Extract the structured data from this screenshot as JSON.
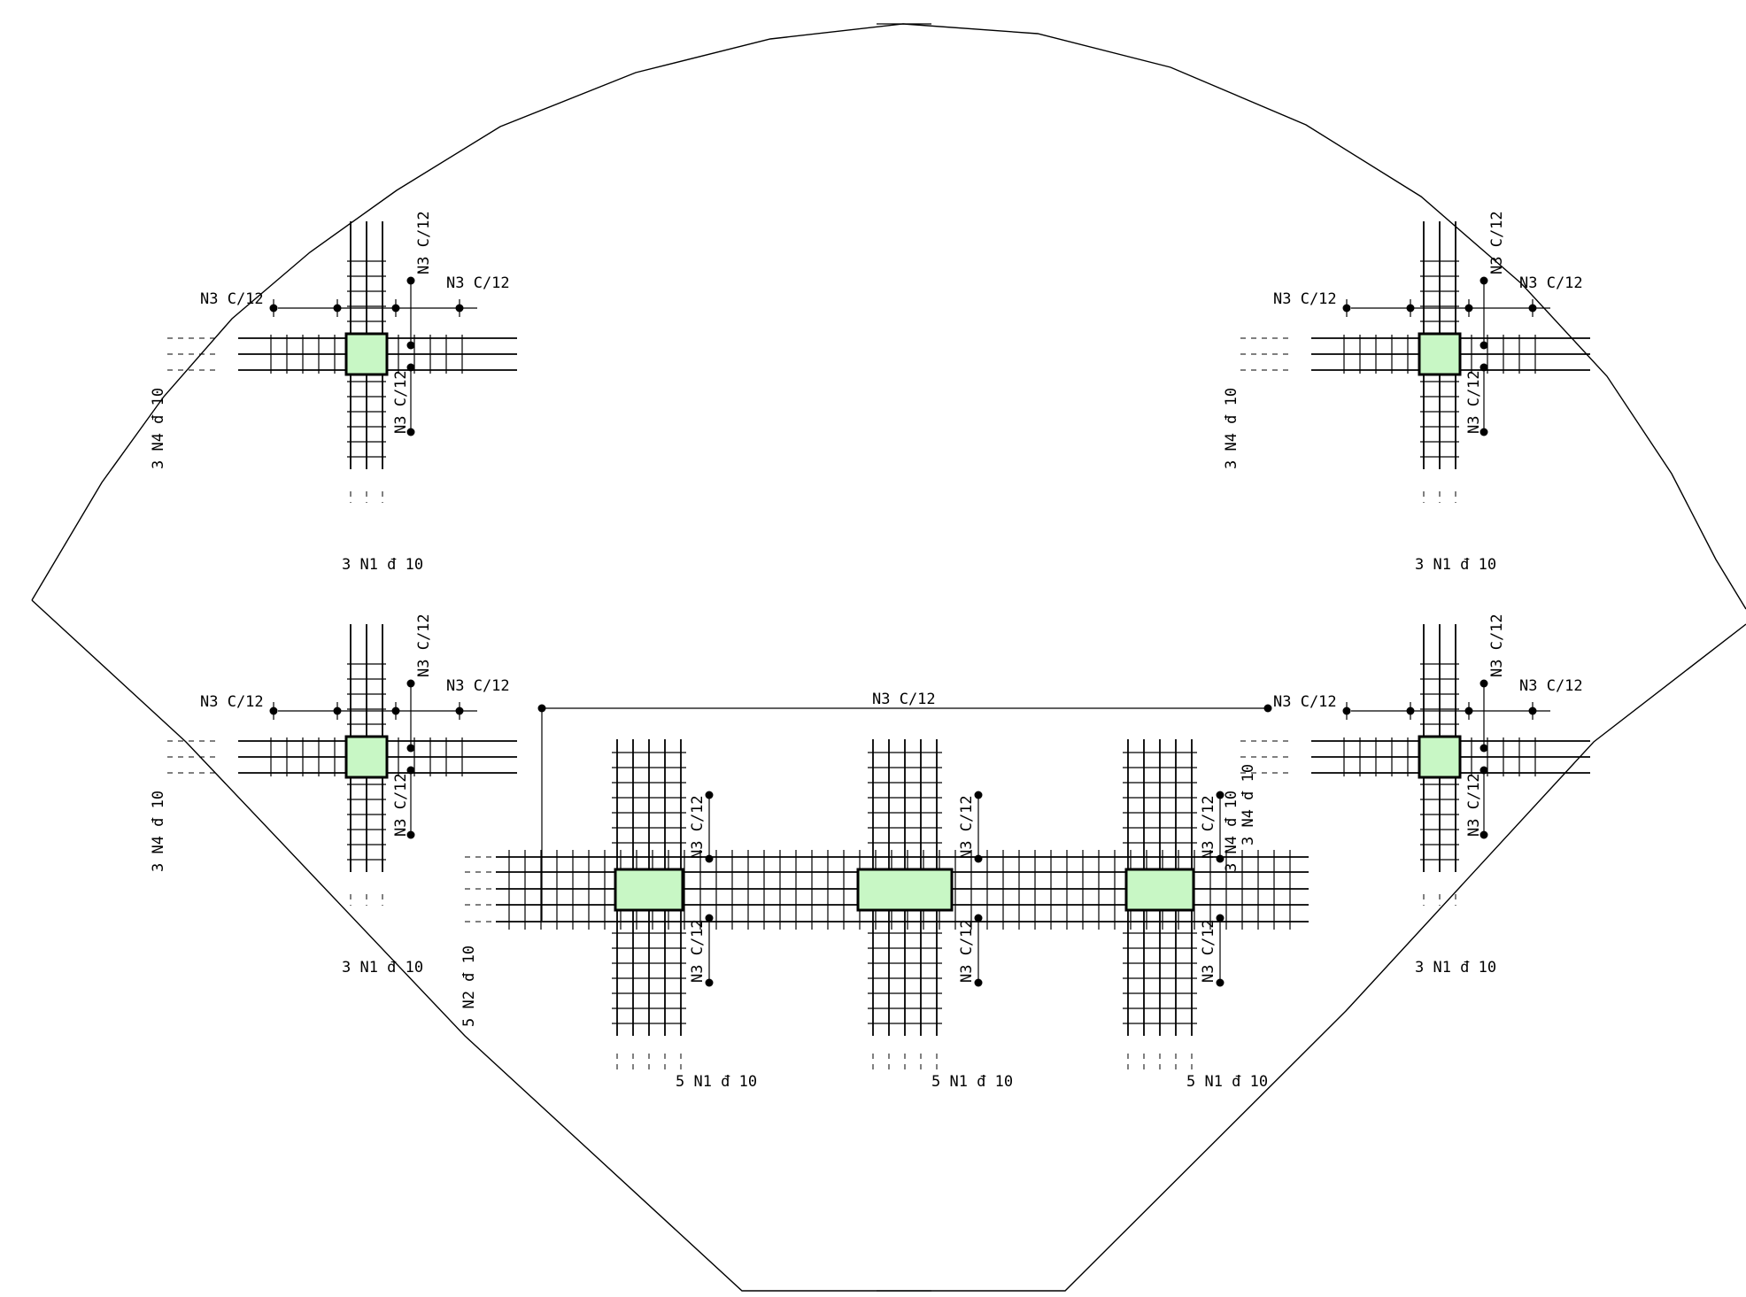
{
  "drawing": {
    "colors": {
      "column_fill": "#c8f7c5",
      "line": "#000000",
      "background": "#ffffff"
    },
    "labels": {
      "stirrup_spacing": "N3  C/12",
      "stirrup_vertical": "N3  C/12",
      "long_bar_3x": "3  N1  đ  10",
      "long_bar_3y": "3  N4  đ  10",
      "long_bar_5x": "5  N1  đ  10",
      "long_bar_5y": "5  N2  đ  10",
      "main_beam_stirrup": "N3  C/12"
    }
  }
}
